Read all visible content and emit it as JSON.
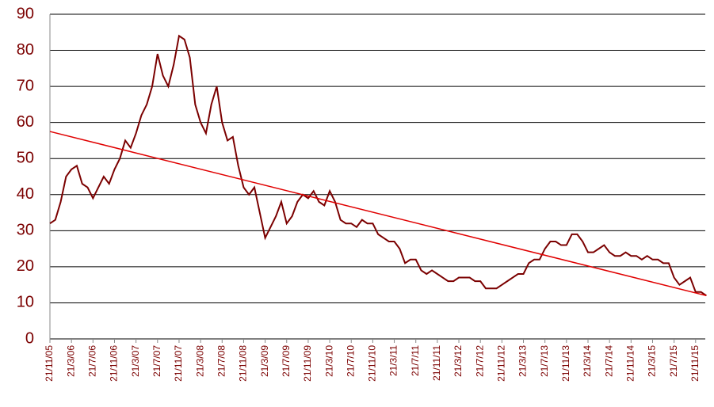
{
  "chart_data": {
    "type": "line",
    "x": [
      "21/11/05",
      "21/12/05",
      "21/1/06",
      "21/2/06",
      "21/3/06",
      "21/4/06",
      "21/5/06",
      "21/6/06",
      "21/7/06",
      "21/8/06",
      "21/9/06",
      "21/10/06",
      "21/11/06",
      "21/12/06",
      "21/1/07",
      "21/2/07",
      "21/3/07",
      "21/4/07",
      "21/5/07",
      "21/6/07",
      "21/7/07",
      "21/8/07",
      "21/9/07",
      "21/10/07",
      "21/11/07",
      "21/12/07",
      "21/1/08",
      "21/2/08",
      "21/3/08",
      "21/4/08",
      "21/5/08",
      "21/6/08",
      "21/7/08",
      "21/8/08",
      "21/9/08",
      "21/10/08",
      "21/11/08",
      "21/12/08",
      "21/1/09",
      "21/2/09",
      "21/3/09",
      "21/4/09",
      "21/5/09",
      "21/6/09",
      "21/7/09",
      "21/8/09",
      "21/9/09",
      "21/10/09",
      "21/11/09",
      "21/12/09",
      "21/1/10",
      "21/2/10",
      "21/3/10",
      "21/4/10",
      "21/5/10",
      "21/6/10",
      "21/7/10",
      "21/8/10",
      "21/9/10",
      "21/10/10",
      "21/11/10",
      "21/12/10",
      "21/1/11",
      "21/2/11",
      "21/3/11",
      "21/4/11",
      "21/5/11",
      "21/6/11",
      "21/7/11",
      "21/8/11",
      "21/9/11",
      "21/10/11",
      "21/11/11",
      "21/12/11",
      "21/1/12",
      "21/2/12",
      "21/3/12",
      "21/4/12",
      "21/5/12",
      "21/6/12",
      "21/7/12",
      "21/8/12",
      "21/9/12",
      "21/10/12",
      "21/11/12",
      "21/12/12",
      "21/1/13",
      "21/2/13",
      "21/3/13",
      "21/4/13",
      "21/5/13",
      "21/6/13",
      "21/7/13",
      "21/8/13",
      "21/9/13",
      "21/10/13",
      "21/11/13",
      "21/12/13",
      "21/1/14",
      "21/2/14",
      "21/3/14",
      "21/4/14",
      "21/5/14",
      "21/6/14",
      "21/7/14",
      "21/8/14",
      "21/9/14",
      "21/10/14",
      "21/11/14",
      "21/12/14",
      "21/1/15",
      "21/2/15",
      "21/3/15",
      "21/4/15",
      "21/5/15",
      "21/6/15",
      "21/7/15",
      "21/8/15",
      "21/9/15",
      "21/10/15",
      "21/11/15",
      "21/12/15",
      "21/1/16"
    ],
    "series": [
      {
        "color": "#7b0000",
        "values": [
          32,
          33,
          38,
          45,
          47,
          48,
          43,
          42,
          39,
          42,
          45,
          43,
          47,
          50,
          55,
          53,
          57,
          62,
          65,
          70,
          79,
          73,
          70,
          76,
          84,
          83,
          78,
          65,
          60,
          57,
          65,
          70,
          60,
          55,
          56,
          48,
          42,
          40,
          42,
          35,
          28,
          31,
          34,
          38,
          32,
          34,
          38,
          40,
          39,
          41,
          38,
          37,
          41,
          38,
          33,
          32,
          32,
          31,
          33,
          32,
          32,
          29,
          28,
          27,
          27,
          25,
          21,
          22,
          22,
          19,
          18,
          19,
          18,
          17,
          16,
          16,
          17,
          17,
          17,
          16,
          16,
          14,
          14,
          14,
          15,
          16,
          17,
          18,
          18,
          21,
          22,
          22,
          25,
          27,
          27,
          26,
          26,
          29,
          29,
          27,
          24,
          24,
          25,
          26,
          24,
          23,
          23,
          24,
          23,
          23,
          22,
          23,
          22,
          22,
          21,
          21,
          17,
          15,
          16,
          17,
          13,
          13,
          12
        ]
      }
    ],
    "trendline": {
      "color": "#e00000",
      "x": [
        "21/11/05",
        "21/1/16"
      ],
      "values": [
        57.5,
        12
      ]
    },
    "ylim": [
      0,
      90
    ],
    "yticks": [
      0,
      10,
      20,
      30,
      40,
      50,
      60,
      70,
      80,
      90
    ],
    "xticks": [
      "21/11/05",
      "21/3/06",
      "21/7/06",
      "21/11/06",
      "21/3/07",
      "21/7/07",
      "21/11/07",
      "21/3/08",
      "21/7/08",
      "21/11/08",
      "21/3/09",
      "21/7/09",
      "21/11/09",
      "21/3/10",
      "21/7/10",
      "21/11/10",
      "21/3/11",
      "21/7/11",
      "21/11/11",
      "21/3/12",
      "21/7/12",
      "21/11/12",
      "21/3/13",
      "21/7/13",
      "21/11/13",
      "21/3/14",
      "21/7/14",
      "21/11/14",
      "21/3/15",
      "21/7/15",
      "21/11/15"
    ],
    "grid": true
  }
}
